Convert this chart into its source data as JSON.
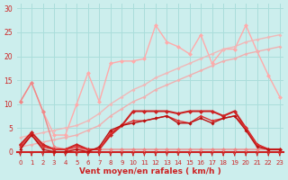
{
  "xlabel": "Vent moyen/en rafales ( km/h )",
  "background_color": "#cceeed",
  "grid_color": "#aadddb",
  "xlim": [
    -0.3,
    23.3
  ],
  "ylim": [
    -1.8,
    31
  ],
  "yticks": [
    0,
    5,
    10,
    15,
    20,
    25,
    30
  ],
  "x_ticks": [
    0,
    1,
    2,
    3,
    4,
    5,
    6,
    7,
    8,
    9,
    10,
    11,
    12,
    13,
    14,
    15,
    16,
    17,
    18,
    19,
    20,
    21,
    22,
    23
  ],
  "series": [
    {
      "x": [
        0,
        1,
        2,
        3,
        4,
        5,
        6,
        7,
        8,
        9,
        10,
        11,
        12,
        13,
        14,
        15,
        16,
        17,
        18,
        19,
        20,
        21,
        22,
        23
      ],
      "y": [
        10.5,
        14.5,
        8.5,
        3.5,
        3.5,
        10.0,
        16.5,
        10.5,
        18.5,
        19.0,
        19.0,
        19.5,
        26.5,
        23.0,
        22.0,
        20.5,
        24.5,
        18.5,
        21.5,
        21.5,
        26.5,
        21.0,
        16.0,
        11.5
      ],
      "color": "#ffaaaa",
      "lw": 1.0,
      "marker": "D",
      "ms": 2.5
    },
    {
      "x": [
        0,
        1,
        2,
        3,
        4,
        5,
        6,
        7,
        8,
        9,
        10,
        11,
        12,
        13,
        14,
        15,
        16,
        17,
        18,
        19,
        20,
        21,
        22,
        23
      ],
      "y": [
        1.0,
        1.5,
        2.0,
        2.5,
        3.0,
        3.5,
        4.5,
        5.5,
        7.5,
        9.0,
        10.5,
        11.5,
        13.0,
        14.0,
        15.0,
        16.0,
        17.0,
        18.0,
        19.0,
        19.5,
        20.5,
        21.0,
        21.5,
        22.0
      ],
      "color": "#f0b0b0",
      "lw": 1.0,
      "marker": "D",
      "ms": 2.0
    },
    {
      "x": [
        0,
        1,
        2,
        3,
        4,
        5,
        6,
        7,
        8,
        9,
        10,
        11,
        12,
        13,
        14,
        15,
        16,
        17,
        18,
        19,
        20,
        21,
        22,
        23
      ],
      "y": [
        3.0,
        3.5,
        4.0,
        4.5,
        5.0,
        5.5,
        6.5,
        8.0,
        10.0,
        11.5,
        13.0,
        14.0,
        15.5,
        16.5,
        17.5,
        18.5,
        19.5,
        20.5,
        21.5,
        22.0,
        23.0,
        23.5,
        24.0,
        24.5
      ],
      "color": "#f0b8b8",
      "lw": 1.0,
      "marker": "D",
      "ms": 2.0
    },
    {
      "x": [
        0,
        1,
        2,
        3,
        4,
        5,
        6,
        7,
        8,
        9,
        10,
        11,
        12,
        13,
        14,
        15,
        16,
        17,
        18,
        19,
        20,
        21,
        22,
        23
      ],
      "y": [
        10.5,
        14.5,
        8.5,
        1.0,
        0.5,
        0.5,
        0.5,
        0.5,
        0.5,
        0.5,
        0.5,
        0.5,
        0.5,
        0.5,
        0.5,
        0.5,
        0.5,
        0.5,
        0.5,
        0.5,
        0.5,
        0.5,
        0.5,
        0.5
      ],
      "color": "#ee8888",
      "lw": 1.0,
      "marker": "D",
      "ms": 2.5
    },
    {
      "x": [
        0,
        1,
        2,
        3,
        4,
        5,
        6,
        7,
        8,
        9,
        10,
        11,
        12,
        13,
        14,
        15,
        16,
        17,
        18,
        19,
        20,
        21,
        22,
        23
      ],
      "y": [
        1.5,
        4.0,
        1.5,
        0.5,
        0.5,
        1.5,
        0.5,
        0.5,
        3.5,
        5.5,
        8.5,
        8.5,
        8.5,
        8.5,
        8.0,
        8.5,
        8.5,
        8.5,
        7.5,
        8.5,
        5.0,
        1.5,
        0.5,
        0.5
      ],
      "color": "#cc2222",
      "lw": 1.5,
      "marker": "D",
      "ms": 2.5
    },
    {
      "x": [
        0,
        1,
        2,
        3,
        4,
        5,
        6,
        7,
        8,
        9,
        10,
        11,
        12,
        13,
        14,
        15,
        16,
        17,
        18,
        19,
        20,
        21,
        22,
        23
      ],
      "y": [
        1.0,
        3.5,
        1.0,
        0.5,
        0.5,
        1.0,
        0.5,
        0.5,
        4.0,
        5.5,
        6.5,
        6.5,
        7.0,
        7.5,
        6.5,
        6.0,
        7.5,
        6.5,
        7.0,
        7.5,
        5.0,
        1.5,
        0.5,
        0.5
      ],
      "color": "#dd3333",
      "lw": 1.0,
      "marker": "D",
      "ms": 2.0
    },
    {
      "x": [
        0,
        1,
        2,
        3,
        4,
        5,
        6,
        7,
        8,
        9,
        10,
        11,
        12,
        13,
        14,
        15,
        16,
        17,
        18,
        19,
        20,
        21,
        22,
        23
      ],
      "y": [
        0.5,
        3.5,
        0.5,
        0.0,
        0.0,
        0.5,
        0.0,
        1.0,
        4.5,
        5.5,
        6.0,
        6.5,
        7.0,
        7.5,
        6.0,
        6.0,
        7.0,
        6.0,
        7.0,
        7.5,
        4.5,
        1.0,
        0.5,
        0.5
      ],
      "color": "#bb1111",
      "lw": 1.0,
      "marker": "D",
      "ms": 2.0
    }
  ],
  "arrow_color": "#cc2222",
  "tick_label_color": "#cc2222",
  "xlabel_color": "#cc2222",
  "axis_line_color": "#cc2222"
}
